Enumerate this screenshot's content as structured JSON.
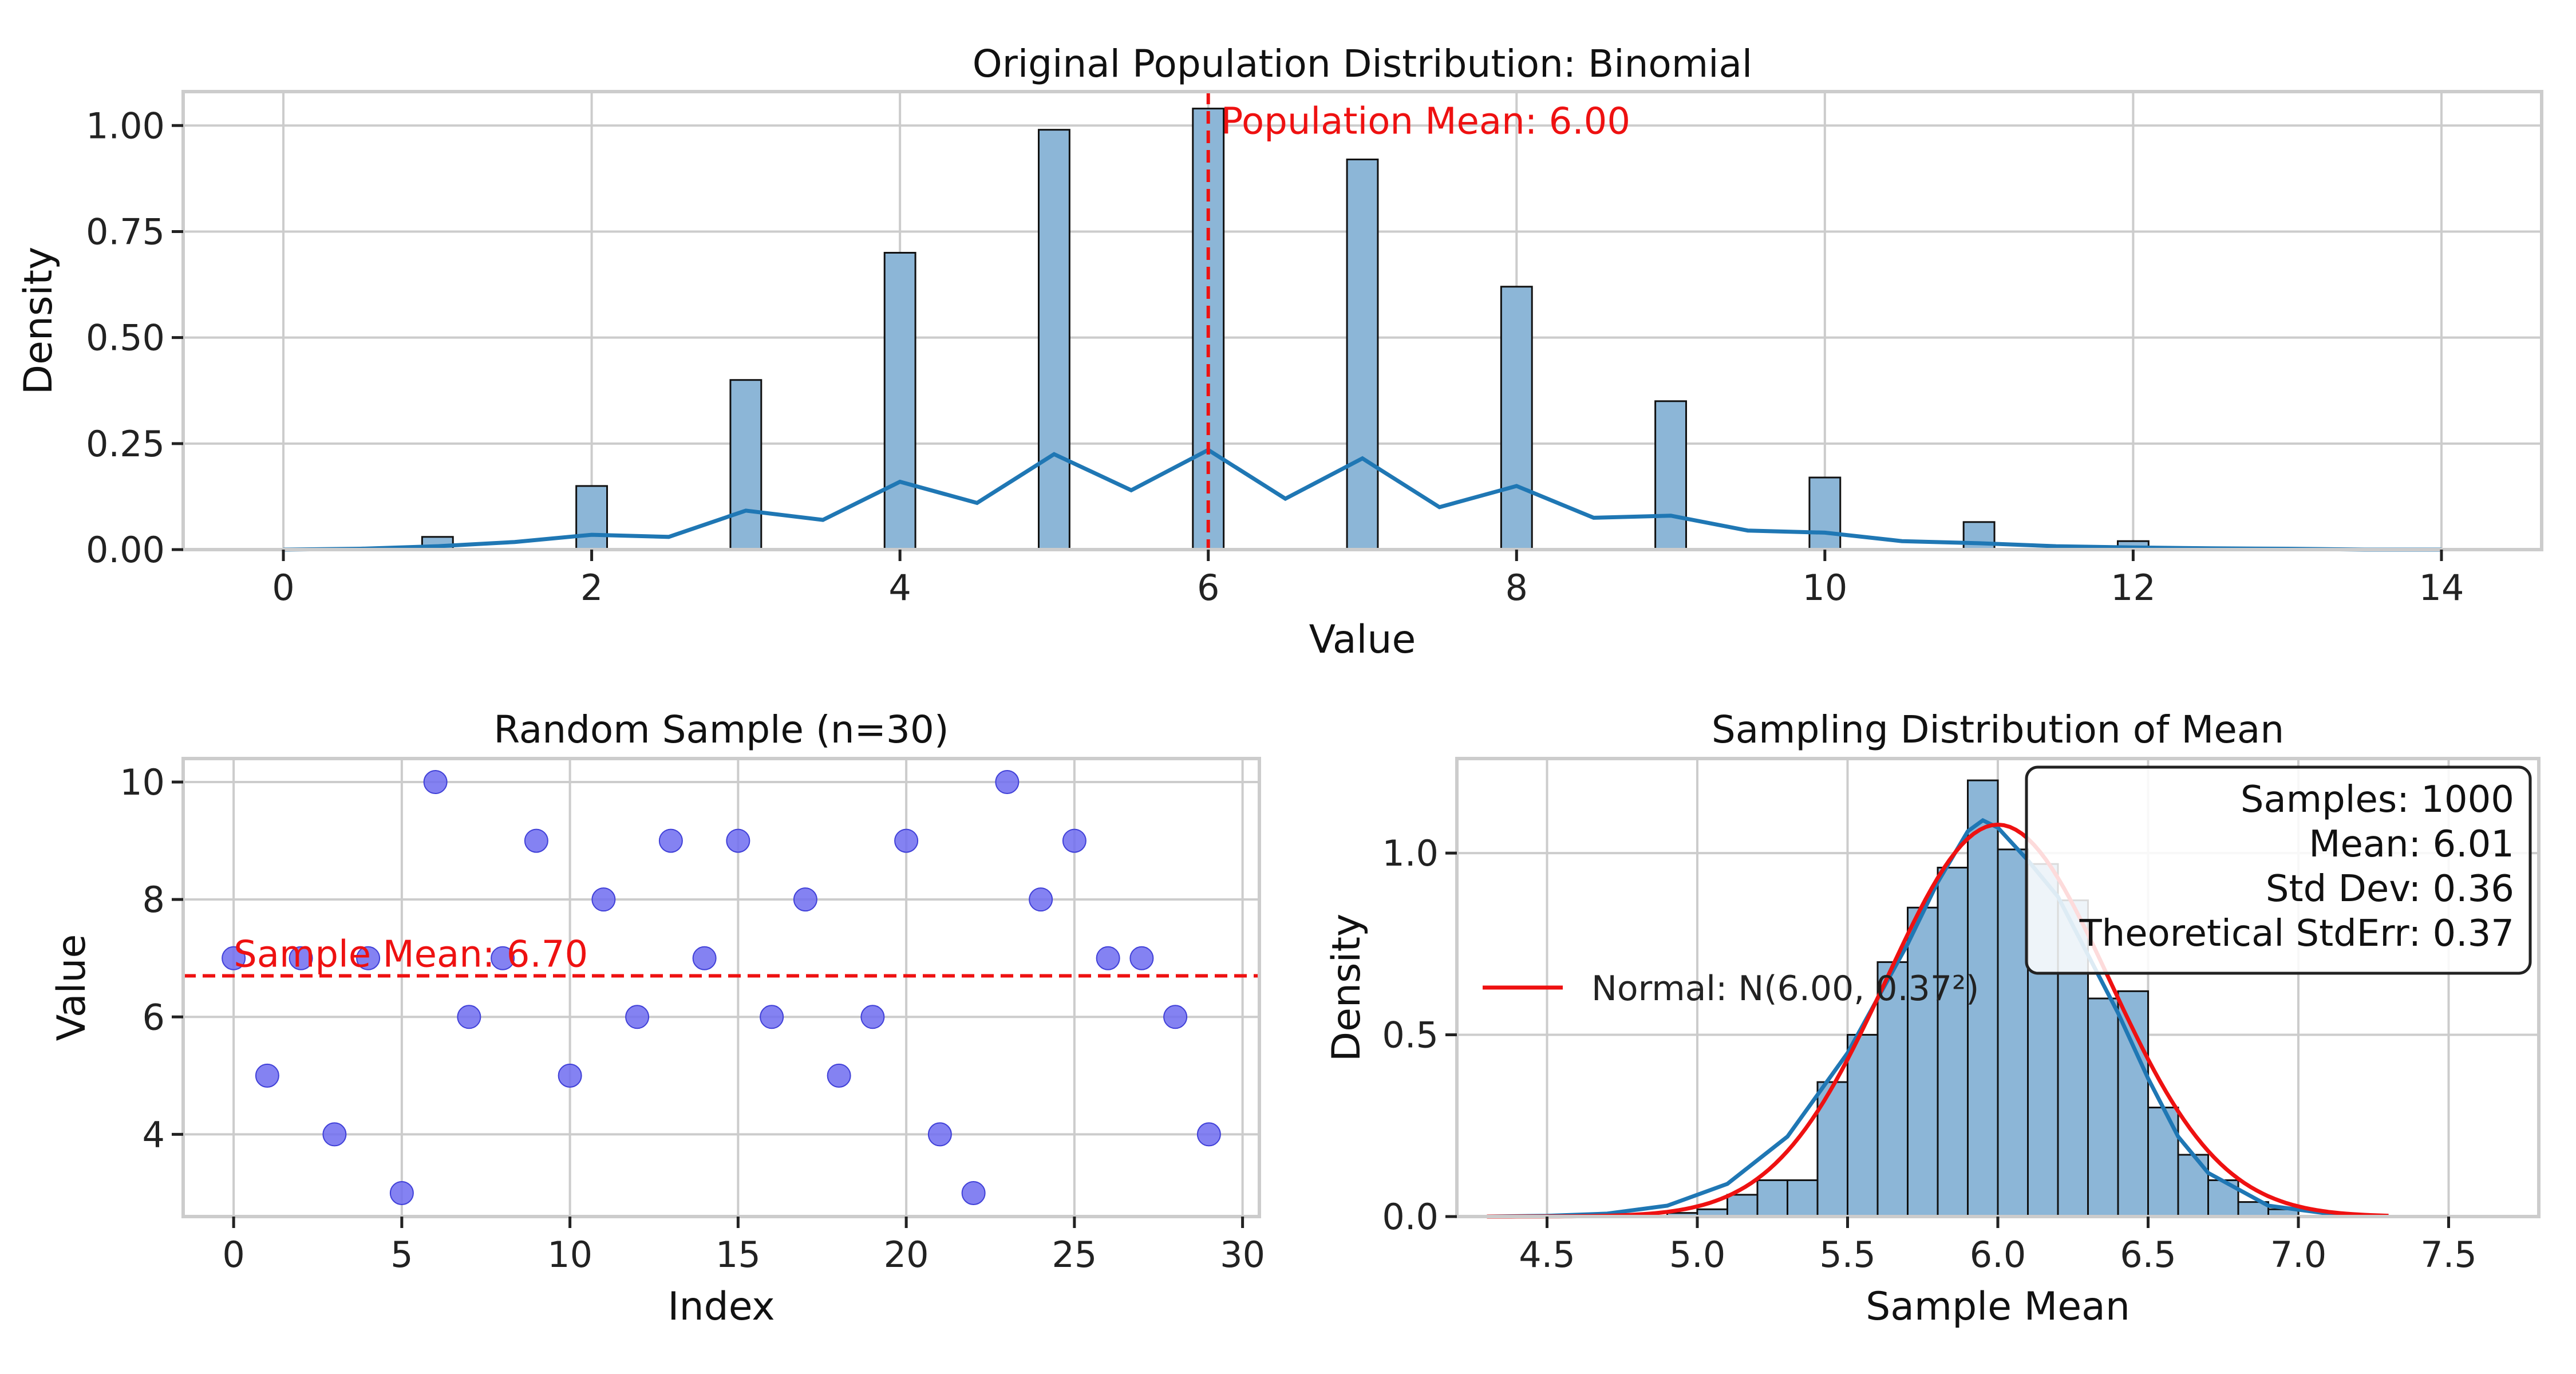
{
  "colors": {
    "bar_fill": "#8cb6d7",
    "bar_edge": "#111111",
    "kde": "#1f77b4",
    "accent_red": "#ee1111",
    "scatter": "#6e6cf0",
    "grid": "#cccccc",
    "axis": "#cccccc"
  },
  "chart_data": [
    {
      "type": "bar",
      "title": "Original Population Distribution: Binomial",
      "xlabel": "Value",
      "ylabel": "Density",
      "xlim": [
        -0.65,
        14.65
      ],
      "ylim": [
        0,
        1.08
      ],
      "xticks": [
        0,
        2,
        4,
        6,
        8,
        10,
        12,
        14
      ],
      "xtick_labels": [
        "0",
        "2",
        "4",
        "6",
        "8",
        "10",
        "12",
        "14"
      ],
      "yticks": [
        0,
        0.25,
        0.5,
        0.75,
        1.0
      ],
      "ytick_labels": [
        "0.00",
        "0.25",
        "0.50",
        "0.75",
        "1.00"
      ],
      "grid": true,
      "bin_width": 0.2,
      "bars": [
        {
          "x": 1,
          "value": 0.03
        },
        {
          "x": 2,
          "value": 0.15
        },
        {
          "x": 3,
          "value": 0.4
        },
        {
          "x": 4,
          "value": 0.7
        },
        {
          "x": 5,
          "value": 0.99
        },
        {
          "x": 6,
          "value": 1.04
        },
        {
          "x": 7,
          "value": 0.92
        },
        {
          "x": 8,
          "value": 0.62
        },
        {
          "x": 9,
          "value": 0.35
        },
        {
          "x": 10,
          "value": 0.17
        },
        {
          "x": 11,
          "value": 0.065
        },
        {
          "x": 12,
          "value": 0.02
        },
        {
          "x": 13,
          "value": 0.004
        }
      ],
      "kde": {
        "x": [
          0,
          0.5,
          1,
          1.5,
          2,
          2.5,
          3,
          3.5,
          4,
          4.5,
          5,
          5.5,
          6,
          6.5,
          7,
          7.5,
          8,
          8.5,
          9,
          9.5,
          10,
          10.5,
          11,
          11.5,
          12,
          12.5,
          13,
          13.5,
          14
        ],
        "y": [
          0.0,
          0.002,
          0.008,
          0.018,
          0.035,
          0.03,
          0.092,
          0.07,
          0.16,
          0.11,
          0.225,
          0.14,
          0.235,
          0.12,
          0.215,
          0.1,
          0.15,
          0.075,
          0.08,
          0.045,
          0.04,
          0.02,
          0.015,
          0.008,
          0.005,
          0.003,
          0.002,
          0.0,
          0.0
        ]
      },
      "mean_line": {
        "x": 6.0,
        "label": "Population Mean: 6.00"
      }
    },
    {
      "type": "scatter",
      "title": "Random Sample (n=30)",
      "xlabel": "Index",
      "ylabel": "Value",
      "xlim": [
        -1.5,
        30.5
      ],
      "ylim": [
        2.6,
        10.4
      ],
      "xticks": [
        0,
        5,
        10,
        15,
        20,
        25,
        30
      ],
      "xtick_labels": [
        "0",
        "5",
        "10",
        "15",
        "20",
        "25",
        "30"
      ],
      "yticks": [
        4,
        6,
        8,
        10
      ],
      "ytick_labels": [
        "4",
        "6",
        "8",
        "10"
      ],
      "grid": true,
      "x": [
        0,
        1,
        2,
        3,
        4,
        5,
        6,
        7,
        8,
        9,
        10,
        11,
        12,
        13,
        14,
        15,
        16,
        17,
        18,
        19,
        20,
        21,
        22,
        23,
        24,
        25,
        26,
        27,
        28,
        29
      ],
      "y": [
        7,
        5,
        7,
        4,
        7,
        3,
        10,
        6,
        7,
        9,
        5,
        8,
        6,
        9,
        7,
        9,
        6,
        8,
        5,
        6,
        9,
        4,
        3,
        10,
        8,
        9,
        7,
        7,
        6,
        4
      ],
      "mean_line": {
        "y": 6.7,
        "label": "Sample Mean: 6.70"
      }
    },
    {
      "type": "bar",
      "title": "Sampling Distribution of Mean",
      "xlabel": "Sample Mean",
      "ylabel": "Density",
      "xlim": [
        4.2,
        7.8
      ],
      "ylim": [
        0,
        1.26
      ],
      "xticks": [
        4.5,
        5.0,
        5.5,
        6.0,
        6.5,
        7.0,
        7.5
      ],
      "xtick_labels": [
        "4.5",
        "5.0",
        "5.5",
        "6.0",
        "6.5",
        "7.0",
        "7.5"
      ],
      "yticks": [
        0,
        0.5,
        1.0
      ],
      "ytick_labels": [
        "0.0",
        "0.5",
        "1.0"
      ],
      "grid": true,
      "bin_edges": [
        4.9,
        5.0,
        5.1,
        5.2,
        5.3,
        5.4,
        5.5,
        5.6,
        5.7,
        5.8,
        5.9,
        6.0,
        6.1,
        6.2,
        6.3,
        6.4,
        6.5,
        6.6,
        6.7,
        6.8,
        6.9,
        7.0
      ],
      "bar_values": [
        0.01,
        0.02,
        0.06,
        0.1,
        0.1,
        0.37,
        0.5,
        0.7,
        0.85,
        0.96,
        1.2,
        1.01,
        0.97,
        0.87,
        0.6,
        0.62,
        0.3,
        0.17,
        0.1,
        0.04,
        0.02
      ],
      "kde": {
        "x": [
          4.3,
          4.5,
          4.7,
          4.9,
          5.1,
          5.3,
          5.5,
          5.7,
          5.8,
          5.9,
          5.95,
          6.0,
          6.1,
          6.2,
          6.3,
          6.4,
          6.5,
          6.6,
          6.7,
          6.9,
          7.1,
          7.3
        ],
        "y": [
          0.0,
          0.002,
          0.008,
          0.03,
          0.09,
          0.22,
          0.45,
          0.75,
          0.92,
          1.06,
          1.09,
          1.07,
          0.98,
          0.88,
          0.72,
          0.56,
          0.38,
          0.22,
          0.12,
          0.03,
          0.008,
          0.001
        ]
      },
      "normal": {
        "mean": 6.0,
        "sd": 0.37,
        "label": "Normal: N(6.00, 0.37²)"
      },
      "stats_box": [
        "Samples: 1000",
        "Mean: 6.01",
        "Std Dev: 0.36",
        "Theoretical StdErr: 0.37"
      ]
    }
  ]
}
